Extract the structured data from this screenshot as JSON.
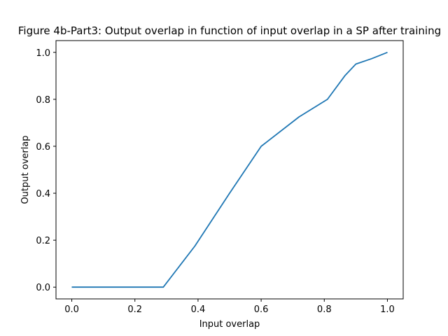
{
  "chart_data": {
    "type": "line",
    "title": "Figure 4b-Part3: Output overlap in function of input overlap in a SP after training",
    "xlabel": "Input overlap",
    "ylabel": "Output overlap",
    "xlim": [
      -0.05,
      1.05
    ],
    "ylim": [
      -0.05,
      1.05
    ],
    "xticks": [
      0.0,
      0.2,
      0.4,
      0.6,
      0.8,
      1.0
    ],
    "xtick_labels": [
      "0.0",
      "0.2",
      "0.4",
      "0.6",
      "0.8",
      "1.0"
    ],
    "yticks": [
      0.0,
      0.2,
      0.4,
      0.6,
      0.8,
      1.0
    ],
    "ytick_labels": [
      "0.0",
      "0.2",
      "0.4",
      "0.6",
      "0.8",
      "1.0"
    ],
    "grid": false,
    "series": [
      {
        "color": "#1f77b4",
        "x": [
          0.0,
          0.29,
          0.39,
          0.5,
          0.6,
          0.72,
          0.81,
          0.865,
          0.9,
          0.95,
          1.0
        ],
        "y": [
          0.0,
          0.0,
          0.175,
          0.4,
          0.6,
          0.725,
          0.8,
          0.9,
          0.95,
          0.973,
          1.0
        ]
      }
    ]
  }
}
